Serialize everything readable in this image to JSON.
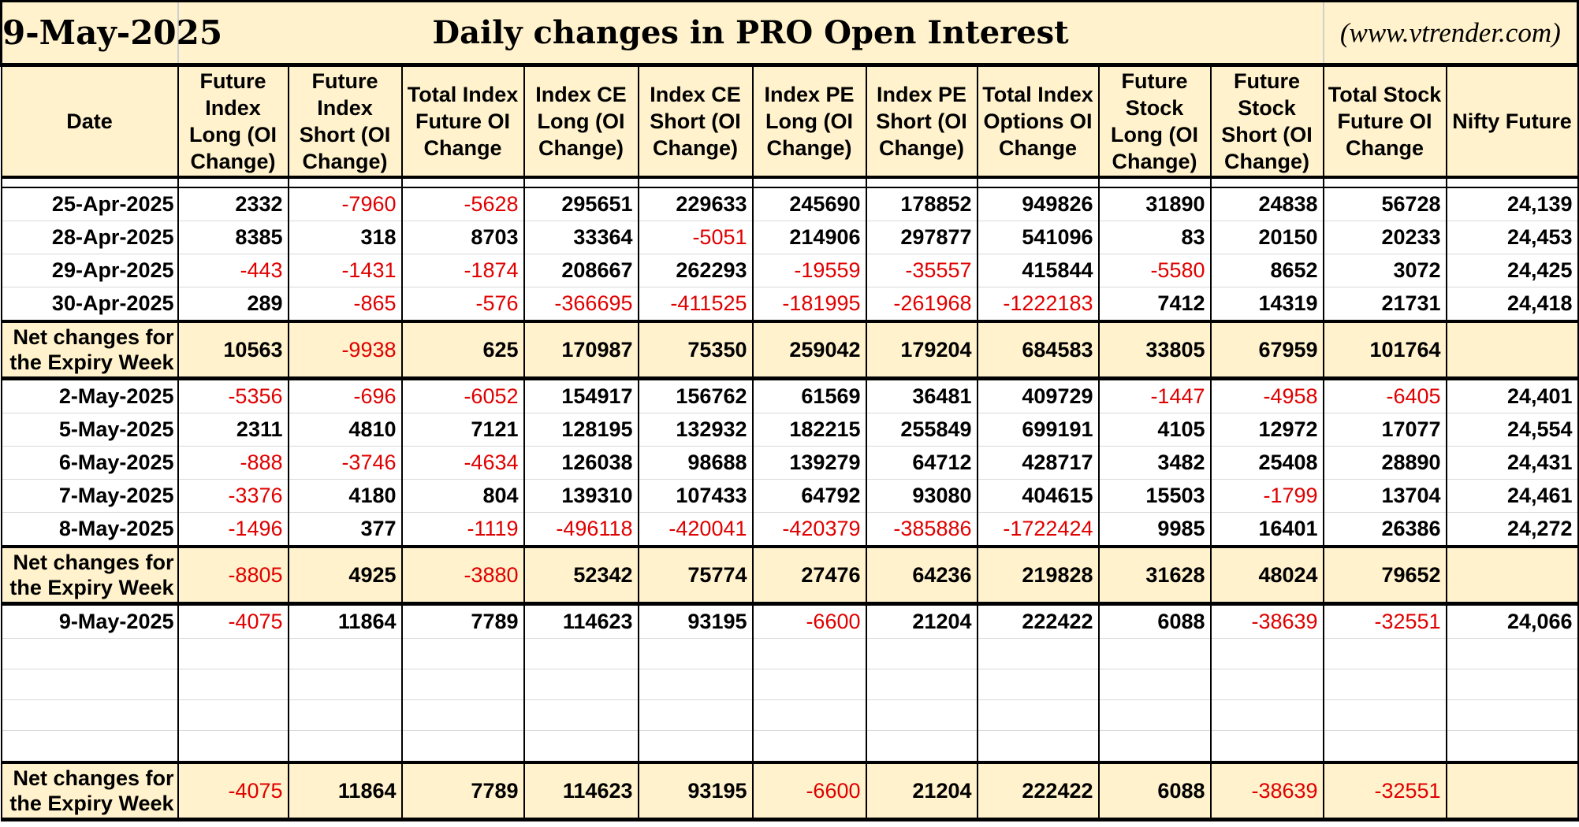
{
  "header": {
    "date": "9-May-2025",
    "title": "Daily changes in PRO Open Interest",
    "site": "(www.vtrender.com)"
  },
  "columns": [
    "Date",
    "Future Index Long (OI Change)",
    "Future Index Short (OI Change)",
    "Total Index Future OI Change",
    "Index CE Long (OI Change)",
    "Index CE Short (OI Change)",
    "Index PE Long (OI Change)",
    "Index PE Short (OI Change)",
    "Total Index Options OI Change",
    "Future Stock Long (OI Change)",
    "Future Stock Short (OI Change)",
    "Total Stock Future OI Change",
    "Nifty Future"
  ],
  "week1": {
    "rows": [
      {
        "date": "25-Apr-2025",
        "cells": [
          "2332",
          "-7960",
          "-5628",
          "295651",
          "229633",
          "245690",
          "178852",
          "949826",
          "31890",
          "24838",
          "56728",
          "24,139"
        ]
      },
      {
        "date": "28-Apr-2025",
        "cells": [
          "8385",
          "318",
          "8703",
          "33364",
          "-5051",
          "214906",
          "297877",
          "541096",
          "83",
          "20150",
          "20233",
          "24,453"
        ]
      },
      {
        "date": "29-Apr-2025",
        "cells": [
          "-443",
          "-1431",
          "-1874",
          "208667",
          "262293",
          "-19559",
          "-35557",
          "415844",
          "-5580",
          "8652",
          "3072",
          "24,425"
        ]
      },
      {
        "date": "30-Apr-2025",
        "cells": [
          "289",
          "-865",
          "-576",
          "-366695",
          "-411525",
          "-181995",
          "-261968",
          "-1222183",
          "7412",
          "14319",
          "21731",
          "24,418"
        ]
      }
    ],
    "net": {
      "label": "Net changes for the Expiry Week",
      "cells": [
        "10563",
        "-9938",
        "625",
        "170987",
        "75350",
        "259042",
        "179204",
        "684583",
        "33805",
        "67959",
        "101764",
        ""
      ]
    }
  },
  "week2": {
    "rows": [
      {
        "date": "2-May-2025",
        "cells": [
          "-5356",
          "-696",
          "-6052",
          "154917",
          "156762",
          "61569",
          "36481",
          "409729",
          "-1447",
          "-4958",
          "-6405",
          "24,401"
        ]
      },
      {
        "date": "5-May-2025",
        "cells": [
          "2311",
          "4810",
          "7121",
          "128195",
          "132932",
          "182215",
          "255849",
          "699191",
          "4105",
          "12972",
          "17077",
          "24,554"
        ]
      },
      {
        "date": "6-May-2025",
        "cells": [
          "-888",
          "-3746",
          "-4634",
          "126038",
          "98688",
          "139279",
          "64712",
          "428717",
          "3482",
          "25408",
          "28890",
          "24,431"
        ]
      },
      {
        "date": "7-May-2025",
        "cells": [
          "-3376",
          "4180",
          "804",
          "139310",
          "107433",
          "64792",
          "93080",
          "404615",
          "15503",
          "-1799",
          "13704",
          "24,461"
        ]
      },
      {
        "date": "8-May-2025",
        "cells": [
          "-1496",
          "377",
          "-1119",
          "-496118",
          "-420041",
          "-420379",
          "-385886",
          "-1722424",
          "9985",
          "16401",
          "26386",
          "24,272"
        ]
      }
    ],
    "net": {
      "label": "Net changes for the Expiry Week",
      "cells": [
        "-8805",
        "4925",
        "-3880",
        "52342",
        "75774",
        "27476",
        "64236",
        "219828",
        "31628",
        "48024",
        "79652",
        ""
      ]
    }
  },
  "week3": {
    "rows": [
      {
        "date": "9-May-2025",
        "cells": [
          "-4075",
          "11864",
          "7789",
          "114623",
          "93195",
          "-6600",
          "21204",
          "222422",
          "6088",
          "-38639",
          "-32551",
          "24,066"
        ]
      }
    ],
    "empty_rows": 4,
    "net": {
      "label": "Net changes for the Expiry Week",
      "cells": [
        "-4075",
        "11864",
        "7789",
        "114623",
        "93195",
        "-6600",
        "21204",
        "222422",
        "6088",
        "-38639",
        "-32551",
        ""
      ]
    }
  },
  "colors": {
    "header_bg": "#fff2cc",
    "negative": "#e00000",
    "border": "#000000"
  }
}
